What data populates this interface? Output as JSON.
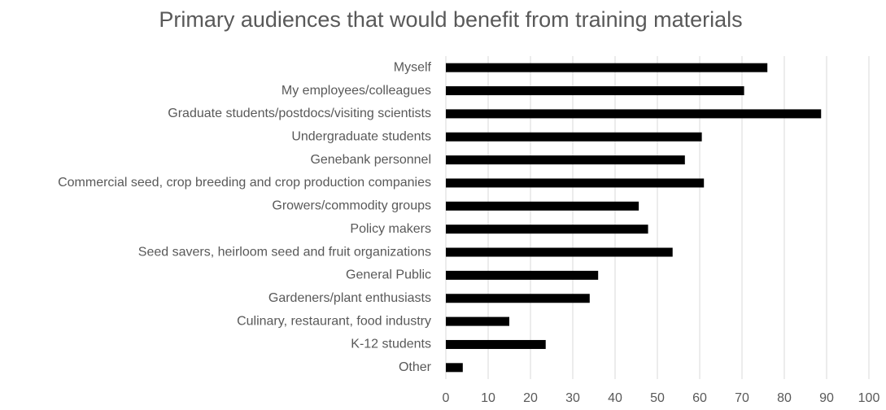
{
  "chart_data": {
    "type": "barh",
    "title": "Primary audiences that would benefit from training materials",
    "categories": [
      "Myself",
      "My employees/colleagues",
      "Graduate students/postdocs/visiting scientists",
      "Undergraduate students",
      "Genebank personnel",
      "Commercial seed, crop breeding and crop production companies",
      "Growers/commodity groups",
      "Policy makers",
      "Seed savers, heirloom seed and fruit organizations",
      "General Public",
      "Gardeners/plant enthusiasts",
      "Culinary, restaurant, food industry",
      "K-12 students",
      "Other"
    ],
    "values": [
      76,
      70.5,
      88.7,
      60.5,
      56.5,
      61,
      45.6,
      47.8,
      53.6,
      36,
      34,
      15,
      23.6,
      4
    ],
    "color": "#000000",
    "xlim": [
      0,
      100
    ],
    "xticks": [
      0,
      10,
      20,
      30,
      40,
      50,
      60,
      70,
      80,
      90,
      100
    ],
    "grid": true
  }
}
